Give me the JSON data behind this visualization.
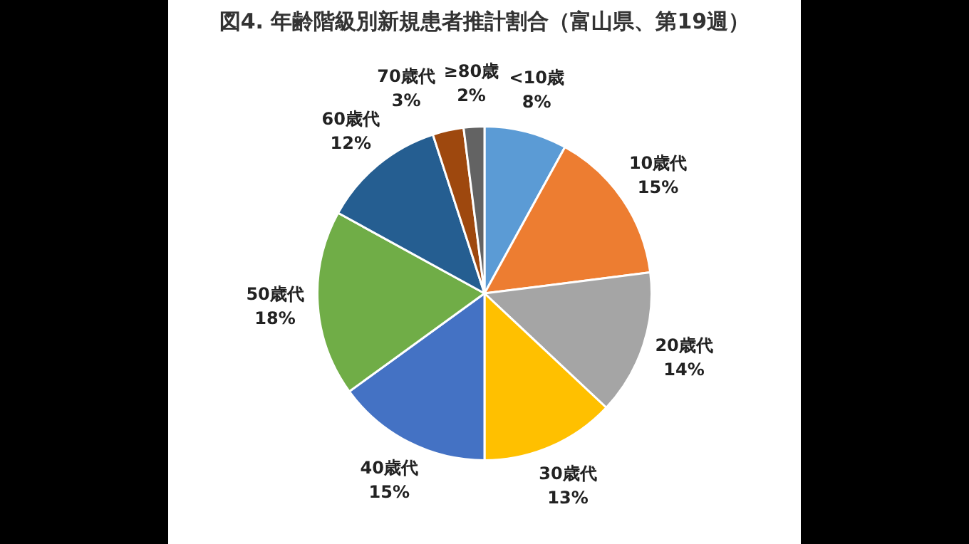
{
  "chart_data": {
    "type": "pie",
    "title": "図4. 年齢階級別新規患者推計割合（富山県、第19週）",
    "categories": [
      "<10歳",
      "10歳代",
      "20歳代",
      "30歳代",
      "40歳代",
      "50歳代",
      "60歳代",
      "70歳代",
      "≥80歳"
    ],
    "values": [
      8,
      15,
      14,
      13,
      15,
      18,
      12,
      3,
      2
    ],
    "colors": [
      "#5b9bd5",
      "#ed7d31",
      "#a5a5a5",
      "#ffc000",
      "#4472c4",
      "#70ad47",
      "#255e91",
      "#9e480e",
      "#636363"
    ],
    "value_labels": [
      "8%",
      "15%",
      "14%",
      "13%",
      "15%",
      "18%",
      "12%",
      "3%",
      "2%"
    ],
    "legend": false
  }
}
